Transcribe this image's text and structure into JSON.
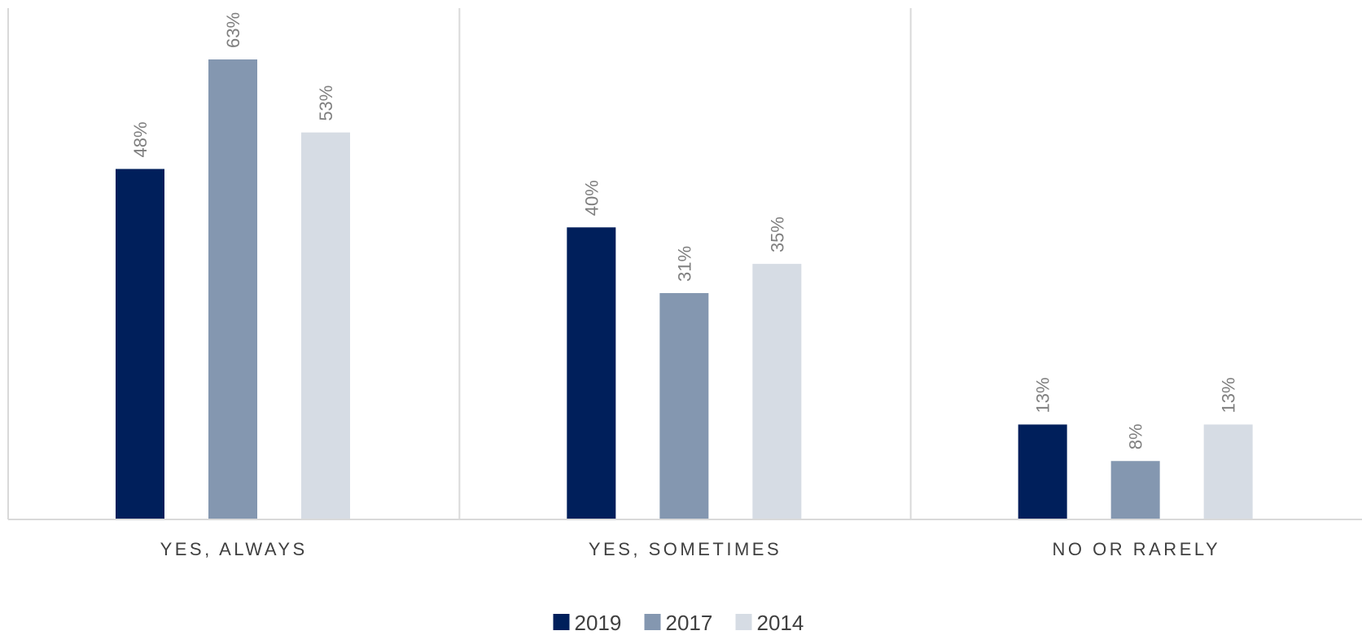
{
  "chart_data": {
    "type": "bar",
    "title": "",
    "xlabel": "",
    "ylabel": "",
    "categories": [
      "YES, ALWAYS",
      "YES, SOMETIMES",
      "NO OR RARELY"
    ],
    "series": [
      {
        "name": "2019",
        "color": "#001f5b",
        "values": [
          48,
          40,
          13
        ],
        "labels": [
          "48%",
          "40%",
          "13%"
        ]
      },
      {
        "name": "2017",
        "color": "#8497b0",
        "values": [
          63,
          31,
          8
        ],
        "labels": [
          "63%",
          "31%",
          "8%"
        ]
      },
      {
        "name": "2014",
        "color": "#d6dce4",
        "values": [
          53,
          35,
          13
        ],
        "labels": [
          "53%",
          "35%",
          "13%"
        ]
      }
    ],
    "ylim": [
      0,
      70
    ],
    "grid": false,
    "category_separators": true,
    "legend_position": "bottom-center",
    "value_label_rotation": "vertical"
  }
}
